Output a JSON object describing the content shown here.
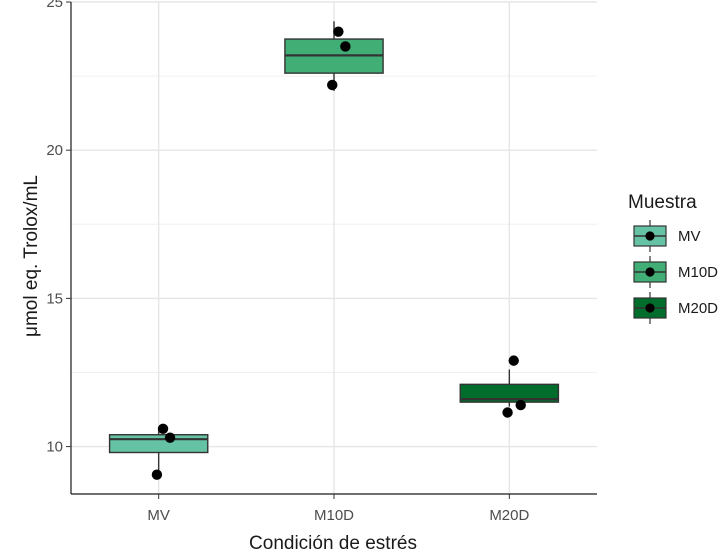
{
  "chart_data": {
    "type": "box",
    "title": "",
    "xlabel": "Condición de estrés",
    "ylabel": "μmol eq. Trolox/mL",
    "ylim": [
      8.4,
      25.0
    ],
    "yticks": [
      10,
      15,
      20,
      25
    ],
    "grid": true,
    "legend": {
      "title": "Muestra",
      "position": "right"
    },
    "categories": [
      "MV",
      "M10D",
      "M20D"
    ],
    "series": [
      {
        "name": "MV",
        "color": "#66C2A4",
        "whisker_low": 9.1,
        "q1": 9.8,
        "median": 10.25,
        "q3": 10.4,
        "whisker_high": 10.6,
        "points": [
          10.6,
          10.3,
          9.05
        ]
      },
      {
        "name": "M10D",
        "color": "#41AE76",
        "whisker_low": 22.0,
        "q1": 22.6,
        "median": 23.2,
        "q3": 23.75,
        "whisker_high": 24.35,
        "points": [
          24.0,
          23.5,
          22.2
        ]
      },
      {
        "name": "M20D",
        "color": "#006D2C",
        "whisker_low": 11.35,
        "q1": 11.5,
        "median": 11.6,
        "q3": 12.1,
        "whisker_high": 12.6,
        "points": [
          12.9,
          11.4,
          11.15
        ]
      }
    ]
  }
}
